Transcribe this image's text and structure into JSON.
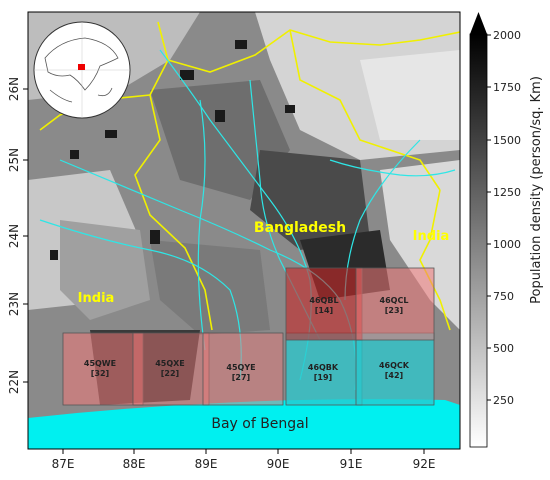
{
  "map": {
    "lon_ticks": [
      "87E",
      "88E",
      "89E",
      "90E",
      "91E",
      "92E"
    ],
    "lat_ticks": [
      "22N",
      "23N",
      "24N",
      "25N",
      "26N"
    ],
    "labels": {
      "bangladesh": "Bangladesh",
      "india_west": "India",
      "india_east": "India",
      "bay": "Bay of Bengal"
    },
    "tiles": [
      {
        "id": "45QWE",
        "count": "[32]",
        "tint": "red"
      },
      {
        "id": "45QXE",
        "count": "[22]",
        "tint": "red"
      },
      {
        "id": "45QYE",
        "count": "[27]",
        "tint": "red"
      },
      {
        "id": "46QBK",
        "count": "[19]",
        "tint": "cyan"
      },
      {
        "id": "46QCK",
        "count": "[42]",
        "tint": "cyan"
      },
      {
        "id": "46QBL",
        "count": "[14]",
        "tint": "red"
      },
      {
        "id": "46QCL",
        "count": "[23]",
        "tint": "red"
      }
    ]
  },
  "colorbar": {
    "label": "Population density (person/sq. Km)",
    "ticks": [
      "250",
      "500",
      "750",
      "1000",
      "1250",
      "1500",
      "1750",
      "2000"
    ]
  },
  "colors": {
    "water": "#00f0f0",
    "river": "#2ee6e6",
    "border": "#f0f000",
    "label_yellow": "#ffff00",
    "tile_red": "rgba(240,120,120,0.55)",
    "tile_cyan": "rgba(40,200,205,0.75)"
  }
}
